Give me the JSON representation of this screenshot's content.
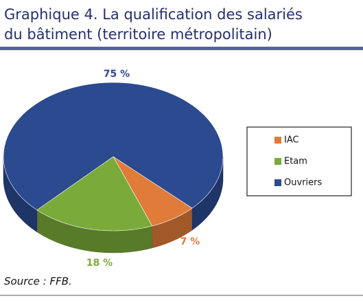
{
  "chart_data": {
    "type": "pie3d",
    "title": [
      "Graphique 4. La qualification des salariés",
      "du bâtiment (territoire métropolitain)"
    ],
    "categories": [
      "IAC",
      "Etam",
      "Ouvriers"
    ],
    "values": [
      7,
      18,
      75
    ],
    "value_labels": [
      "7 %",
      "18 %",
      "75 %"
    ],
    "colors": [
      "#e07b39",
      "#7aab3a",
      "#2b4a8f"
    ],
    "label_colors": [
      "#e07b39",
      "#7aab3a",
      "#2b4a8f"
    ],
    "source": "Source : FFB."
  }
}
